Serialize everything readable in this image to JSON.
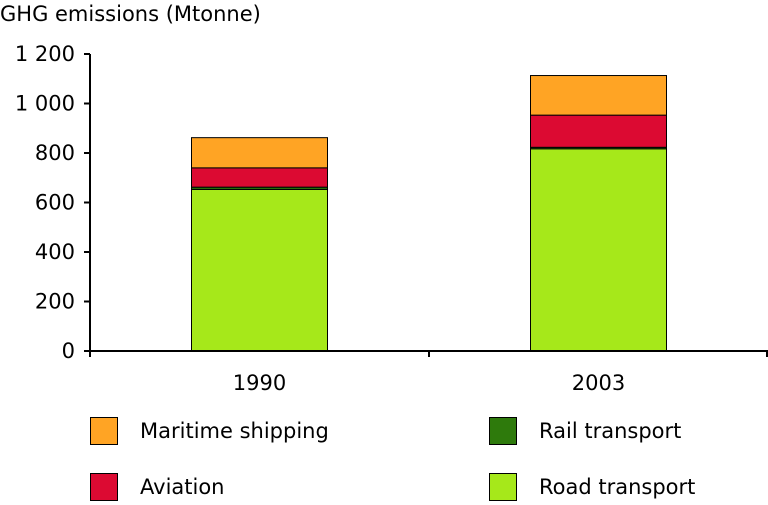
{
  "chart_data": {
    "type": "bar",
    "stacked": true,
    "ylabel": "GHG emissions (Mtonne)",
    "categories": [
      "1990",
      "2003"
    ],
    "ylim": [
      0,
      1200
    ],
    "yticks": [
      0,
      200,
      400,
      600,
      800,
      1000,
      1200
    ],
    "ytick_labels": [
      "0",
      "200",
      "400",
      "600",
      "800",
      "1 000",
      "1 200"
    ],
    "series": [
      {
        "name": "Road transport",
        "color": "#a6e81a",
        "values": [
          653,
          817
        ]
      },
      {
        "name": "Rail transport",
        "color": "#2e7a0c",
        "values": [
          9,
          6
        ]
      },
      {
        "name": "Aviation",
        "color": "#dc0a32",
        "values": [
          78,
          130
        ]
      },
      {
        "name": "Maritime shipping",
        "color": "#ffa424",
        "values": [
          122,
          160
        ]
      }
    ],
    "grid": false,
    "legend_position": "bottom"
  },
  "legend": {
    "items": [
      {
        "label": "Maritime shipping",
        "color": "#ffa424"
      },
      {
        "label": "Rail transport",
        "color": "#2e7a0c"
      },
      {
        "label": "Aviation",
        "color": "#dc0a32"
      },
      {
        "label": "Road transport",
        "color": "#a6e81a"
      }
    ]
  }
}
